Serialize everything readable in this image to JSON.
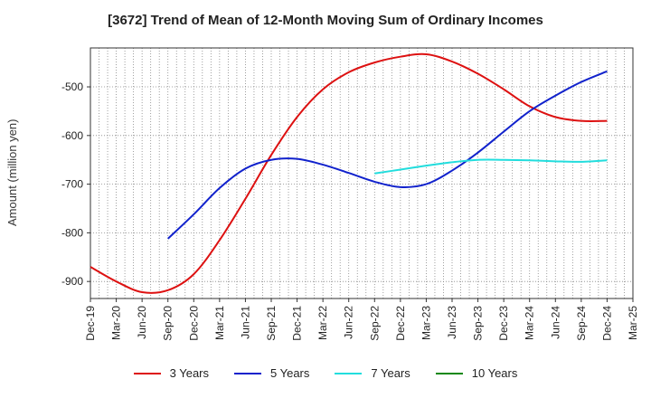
{
  "chart_data": {
    "type": "line",
    "title": "[3672]  Trend of Mean of 12-Month Moving Sum of Ordinary Incomes",
    "xlabel": "",
    "ylabel": "Amount (million yen)",
    "ylim": [
      -935,
      -420
    ],
    "yticks": [
      -900,
      -800,
      -700,
      -600,
      -500
    ],
    "x_categories": [
      "Dec-19",
      "Mar-20",
      "Jun-20",
      "Sep-20",
      "Dec-20",
      "Mar-21",
      "Jun-21",
      "Sep-21",
      "Dec-21",
      "Mar-22",
      "Jun-22",
      "Sep-22",
      "Dec-22",
      "Mar-23",
      "Jun-23",
      "Sep-23",
      "Dec-23",
      "Mar-24",
      "Jun-24",
      "Sep-24",
      "Dec-24",
      "Mar-25"
    ],
    "series": [
      {
        "name": "3 Years",
        "color": "#dd1111",
        "points": [
          [
            0,
            -870
          ],
          [
            1,
            -900
          ],
          [
            2,
            -922
          ],
          [
            3,
            -918
          ],
          [
            4,
            -885
          ],
          [
            5,
            -815
          ],
          [
            6,
            -730
          ],
          [
            7,
            -640
          ],
          [
            8,
            -562
          ],
          [
            9,
            -505
          ],
          [
            10,
            -470
          ],
          [
            11,
            -450
          ],
          [
            12,
            -438
          ],
          [
            13,
            -433
          ],
          [
            14,
            -448
          ],
          [
            15,
            -473
          ],
          [
            16,
            -505
          ],
          [
            17,
            -540
          ],
          [
            18,
            -562
          ],
          [
            19,
            -570
          ],
          [
            20,
            -570
          ]
        ]
      },
      {
        "name": "5 Years",
        "color": "#1122cc",
        "points": [
          [
            3,
            -812
          ],
          [
            4,
            -762
          ],
          [
            5,
            -708
          ],
          [
            6,
            -668
          ],
          [
            7,
            -650
          ],
          [
            8,
            -648
          ],
          [
            9,
            -660
          ],
          [
            10,
            -677
          ],
          [
            11,
            -695
          ],
          [
            12,
            -706
          ],
          [
            13,
            -700
          ],
          [
            14,
            -672
          ],
          [
            15,
            -635
          ],
          [
            16,
            -592
          ],
          [
            17,
            -550
          ],
          [
            18,
            -518
          ],
          [
            19,
            -490
          ],
          [
            20,
            -468
          ]
        ]
      },
      {
        "name": "7 Years",
        "color": "#22dddd",
        "points": [
          [
            11,
            -678
          ],
          [
            12,
            -670
          ],
          [
            13,
            -662
          ],
          [
            14,
            -655
          ],
          [
            15,
            -650
          ],
          [
            16,
            -650
          ],
          [
            17,
            -651
          ],
          [
            18,
            -653
          ],
          [
            19,
            -654
          ],
          [
            20,
            -651
          ]
        ]
      },
      {
        "name": "10 Years",
        "color": "#118811",
        "points": []
      }
    ]
  }
}
